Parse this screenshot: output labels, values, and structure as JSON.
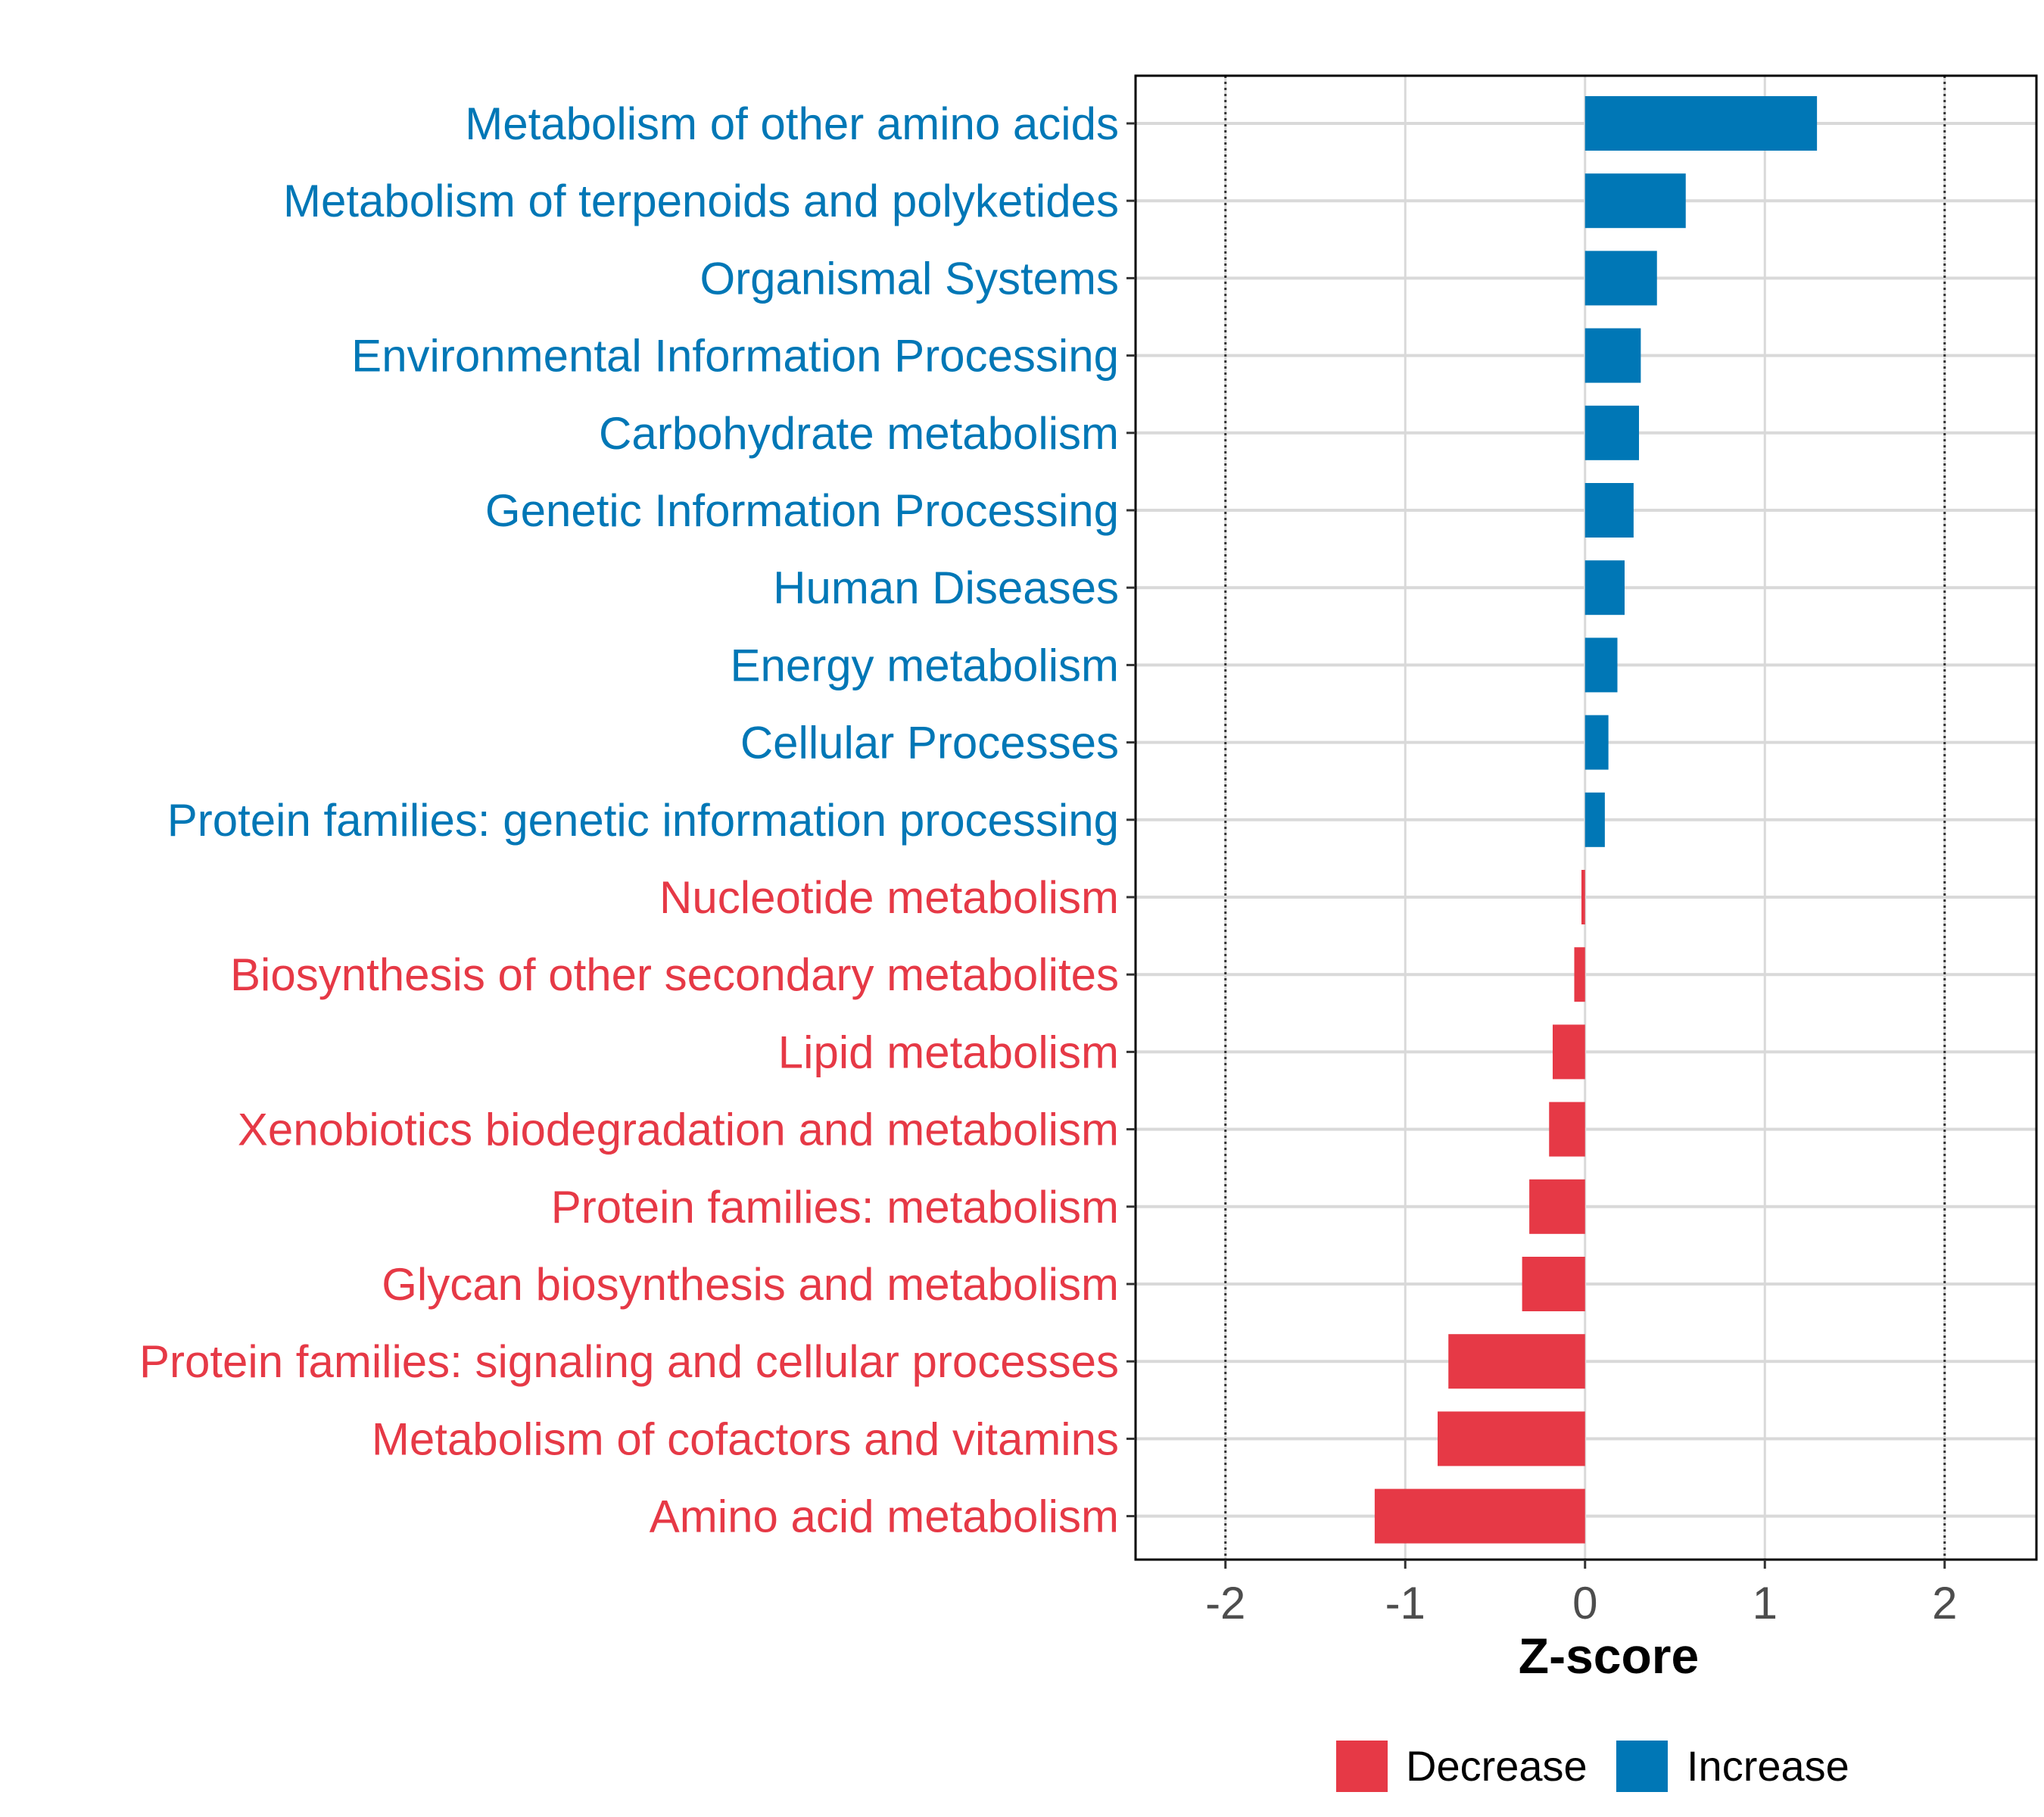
{
  "chart_data": {
    "type": "bar",
    "orientation": "horizontal",
    "xlabel": "Z-score",
    "xlim": [
      -2.5,
      2.5
    ],
    "xticks": [
      -2,
      -1,
      0,
      1,
      2
    ],
    "tick_labels": [
      "-2",
      "-1",
      "0",
      "1",
      "2"
    ],
    "reference_lines": [
      -2,
      2
    ],
    "categories": [
      "Metabolism of other amino acids",
      "Metabolism of terpenoids and polyketides",
      "Organismal Systems",
      "Environmental Information Processing",
      "Carbohydrate metabolism",
      "Genetic Information Processing",
      "Human Diseases",
      "Energy metabolism",
      "Cellular Processes",
      "Protein families: genetic information processing",
      "Nucleotide metabolism",
      "Biosynthesis of other secondary metabolites",
      "Lipid metabolism",
      "Xenobiotics biodegradation and metabolism",
      "Protein families: metabolism",
      "Glycan biosynthesis and metabolism",
      "Protein families: signaling and cellular processes",
      "Metabolism of cofactors and vitamins",
      "Amino acid metabolism"
    ],
    "values": [
      1.29,
      0.56,
      0.4,
      0.31,
      0.3,
      0.27,
      0.22,
      0.18,
      0.13,
      0.11,
      -0.02,
      -0.06,
      -0.18,
      -0.2,
      -0.31,
      -0.35,
      -0.76,
      -0.82,
      -1.17
    ],
    "groups": [
      "Increase",
      "Increase",
      "Increase",
      "Increase",
      "Increase",
      "Increase",
      "Increase",
      "Increase",
      "Increase",
      "Increase",
      "Decrease",
      "Decrease",
      "Decrease",
      "Decrease",
      "Decrease",
      "Decrease",
      "Decrease",
      "Decrease",
      "Decrease"
    ],
    "legend": [
      {
        "label": "Decrease",
        "color": "#e63946"
      },
      {
        "label": "Increase",
        "color": "#0077b6"
      }
    ],
    "legend_position": "bottom"
  }
}
